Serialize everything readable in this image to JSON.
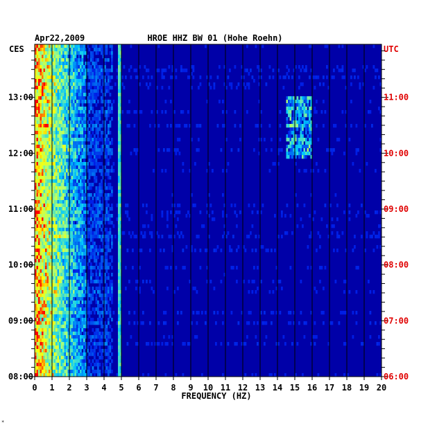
{
  "chart_data": {
    "type": "heatmap",
    "date": "Apr22,2009",
    "title": "HROE HHZ BW 01 (Hohe Roehn)",
    "xlabel": "FREQUENCY (HZ)",
    "xlim": [
      0,
      20
    ],
    "x_ticks": [
      "0",
      "1",
      "2",
      "3",
      "4",
      "5",
      "6",
      "7",
      "8",
      "9",
      "10",
      "11",
      "12",
      "13",
      "14",
      "15",
      "16",
      "17",
      "18",
      "19",
      "20"
    ],
    "left_axis_label": "CES",
    "right_axis_label": "UTC",
    "left_ticks": [
      "13:00",
      "12:00",
      "11:00",
      "10:00",
      "09:00",
      "08:00"
    ],
    "right_ticks": [
      "11:00",
      "10:00",
      "09:00",
      "08:00",
      "07:00",
      "06:00"
    ],
    "ylim_utc_hours": [
      6.0,
      11.95
    ],
    "grid": "vertical lines at each 1 Hz",
    "colors": {
      "background": "#0000a8",
      "grid": "#000000",
      "low": "#0010c0",
      "mid": "#00c8ff",
      "high": "#ffff00",
      "peak": "#ff0000",
      "right_axis": "#e00000"
    },
    "features": [
      {
        "label": "strong low-frequency energy",
        "freq_range_hz": [
          0,
          3
        ]
      },
      {
        "label": "persistent line",
        "freq_hz": 4.9
      },
      {
        "label": "intermittent band",
        "freq_range_hz": [
          14.5,
          16
        ],
        "utc_range": [
          9.9,
          11.0
        ]
      }
    ]
  },
  "footer_mark": "*"
}
